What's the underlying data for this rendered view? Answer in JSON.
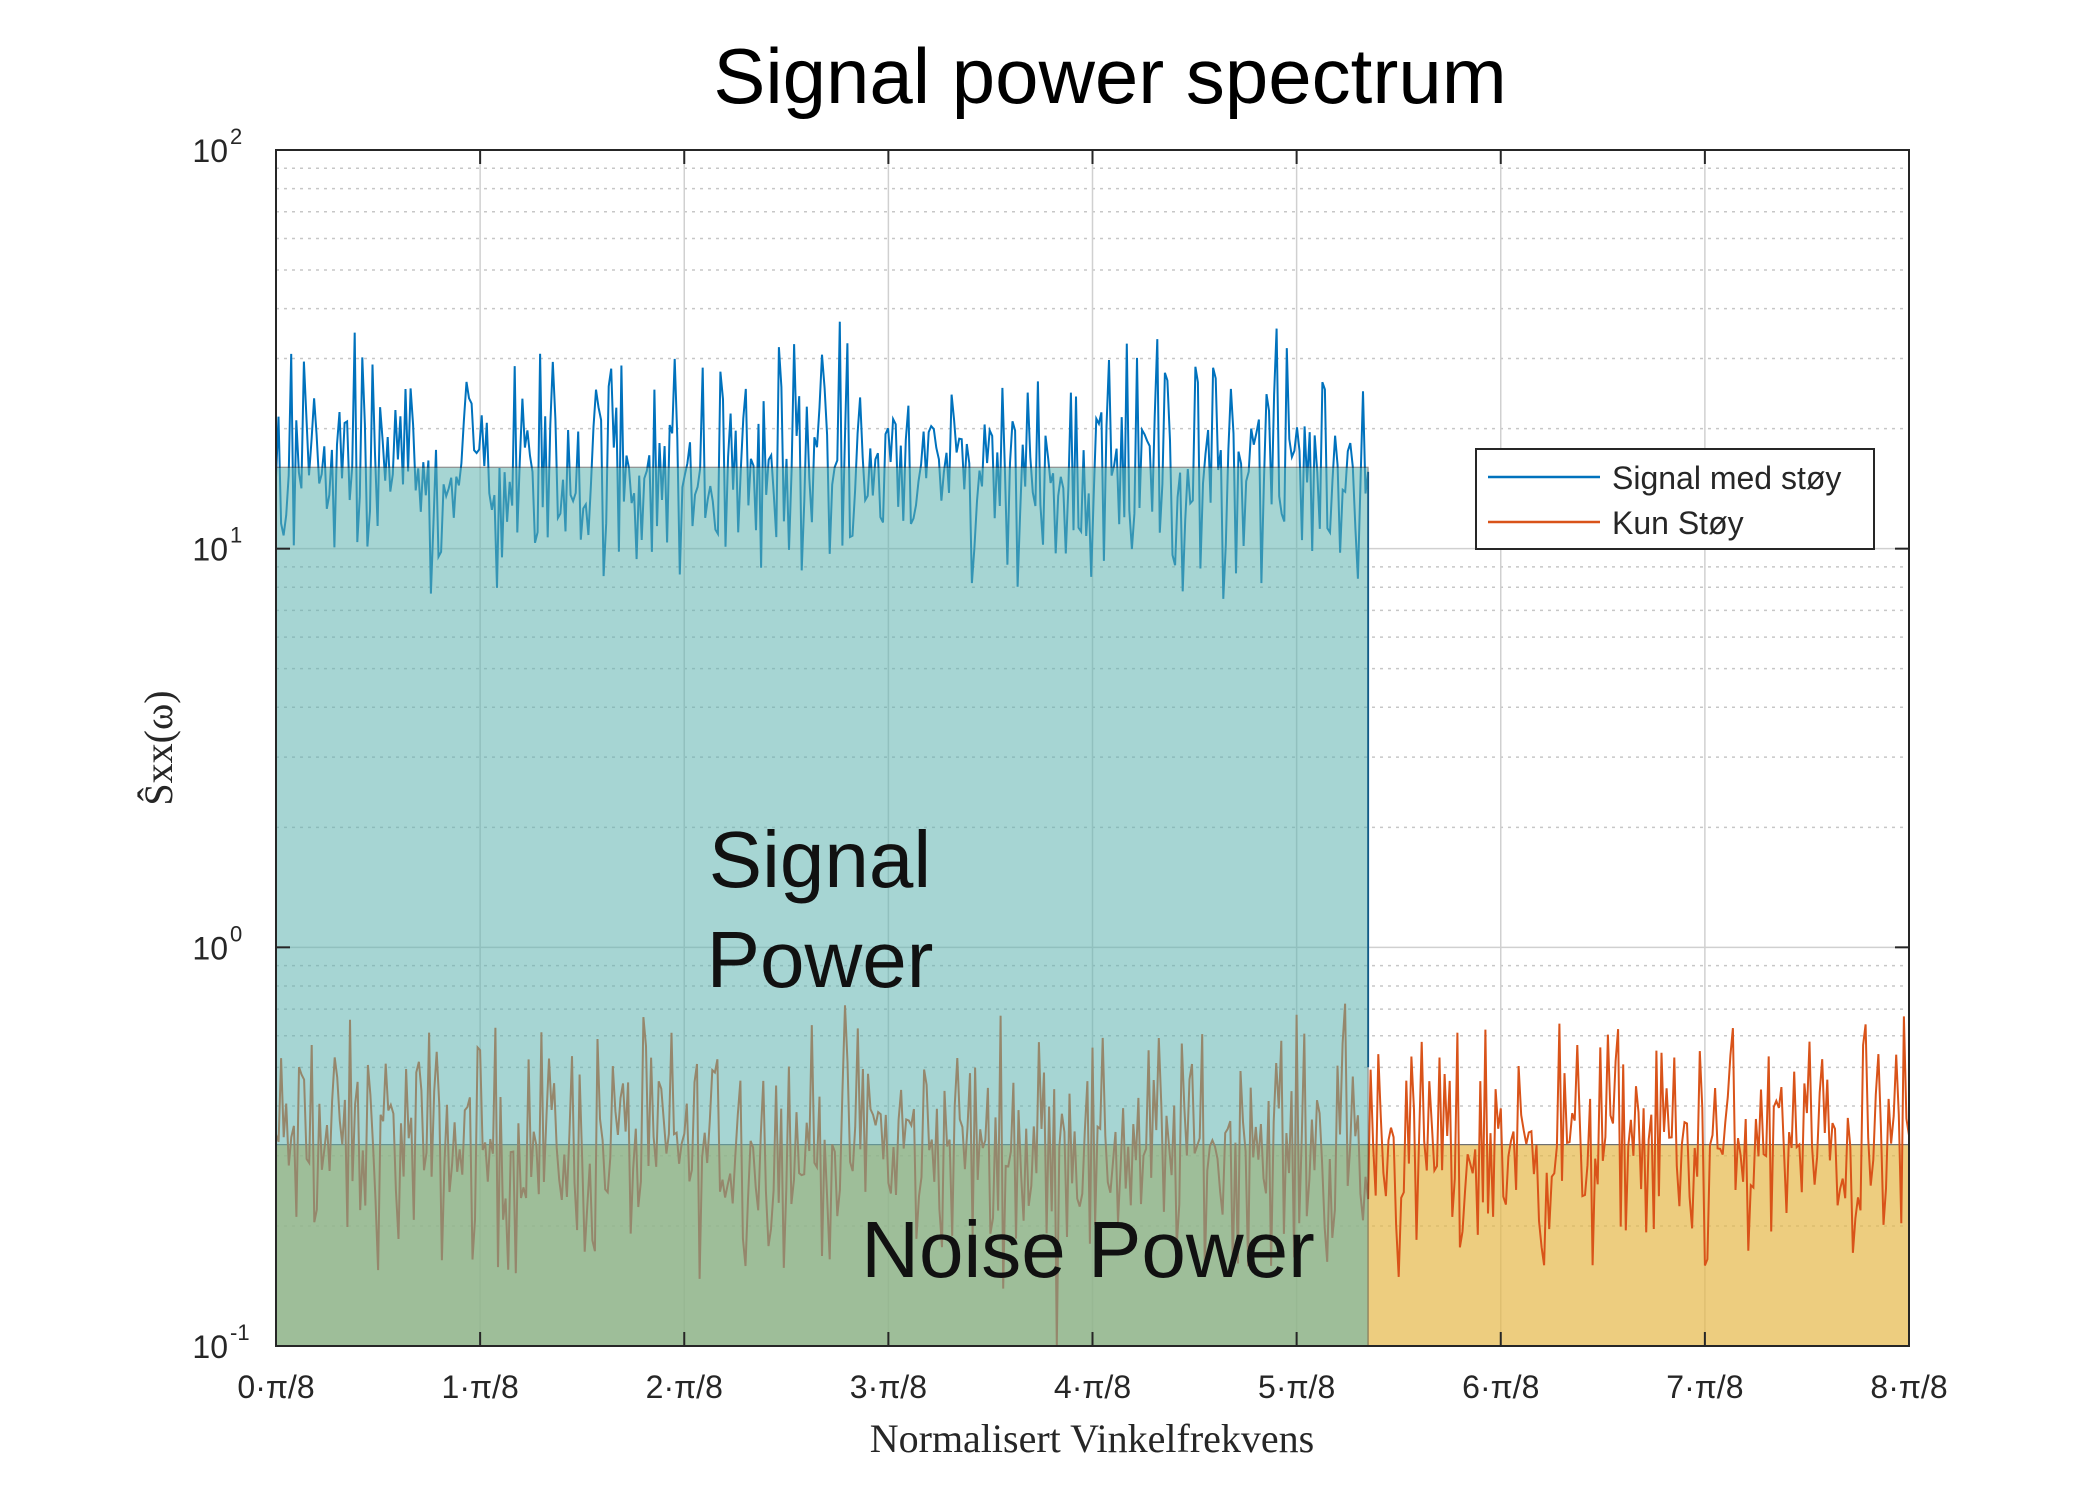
{
  "chart_data": {
    "type": "line",
    "title": "Signal power spectrum",
    "xlabel": "Normalisert Vinkelfrekvens",
    "ylabel": "Ŝxx(ω)",
    "yscale": "log",
    "ylim": [
      0.1,
      100
    ],
    "xlim": [
      0,
      8
    ],
    "xticks": [
      0,
      1,
      2,
      3,
      4,
      5,
      6,
      7,
      8
    ],
    "xtick_labels": [
      "0·π/8",
      "1·π/8",
      "2·π/8",
      "3·π/8",
      "4·π/8",
      "5·π/8",
      "6·π/8",
      "7·π/8",
      "8·π/8"
    ],
    "yticks": [
      0.1,
      1,
      10,
      100
    ],
    "ytick_bases": [
      "10",
      "10",
      "10",
      "10"
    ],
    "ytick_exps": [
      "-1",
      "0",
      "1",
      "2"
    ],
    "grid": true,
    "legend_position": "top-right",
    "series": [
      {
        "name": "Signal med støy",
        "color": "#0072BD",
        "x_range": [
          0,
          5.35
        ],
        "mean_level": 16,
        "spread": 0.14
      },
      {
        "name": "Kun Støy",
        "color": "#D95319",
        "x_range": [
          0,
          8
        ],
        "mean_level": 0.32,
        "spread": 0.14
      }
    ],
    "shaded_regions": [
      {
        "label": "Signal Power",
        "x_range": [
          0,
          5.35
        ],
        "y_range": [
          0.1,
          16
        ],
        "color": "#5fb3b0"
      },
      {
        "label": "Noise Power",
        "x_range": [
          0,
          8
        ],
        "y_range": [
          0.1,
          0.32
        ],
        "color": "#e6b94a"
      }
    ],
    "annotations": {
      "signal_line1": "Signal",
      "signal_line2": "Power",
      "noise": "Noise Power"
    }
  }
}
